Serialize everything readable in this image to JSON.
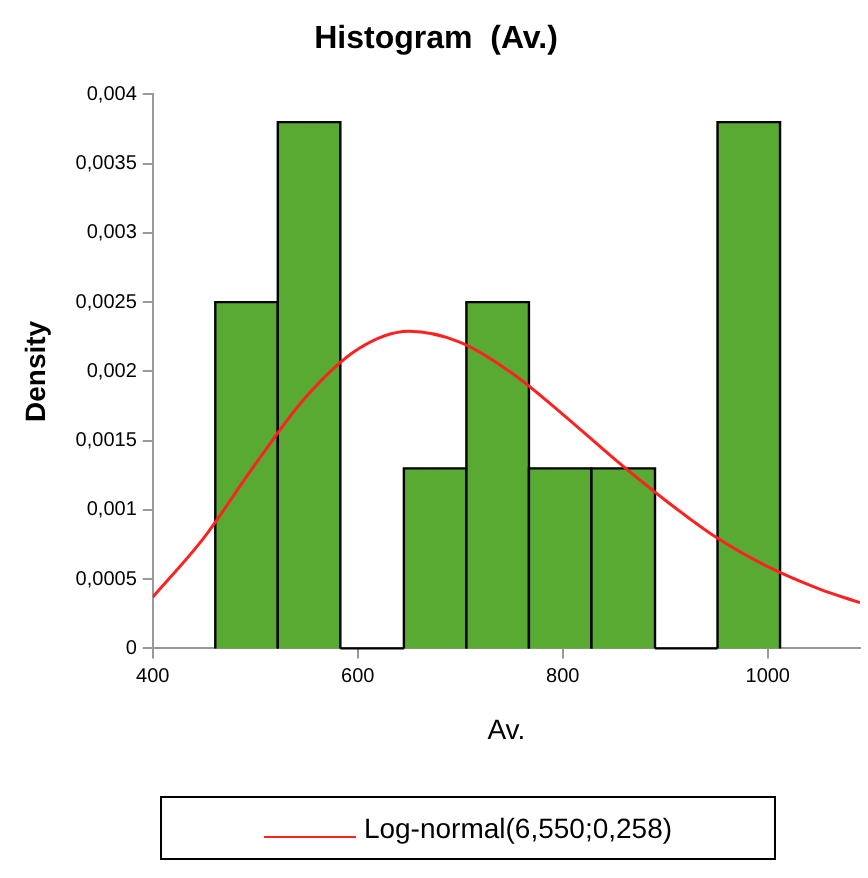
{
  "chart_data": {
    "type": "histogram",
    "title": "Histogram  (Av.)",
    "xlabel": "Av.",
    "ylabel": "Density",
    "bins": [
      461,
      522,
      583,
      645,
      706,
      767,
      828,
      890,
      951,
      1012
    ],
    "values": [
      0.0025,
      0.0038,
      0,
      0.0013,
      0.0025,
      0.0013,
      0.0013,
      0,
      0.0038
    ],
    "color": "#59aa32",
    "series": [
      {
        "type": "line",
        "name": "Log-normal(6,550;0,258)",
        "color": "#ff2020",
        "x": [
          400,
          450,
          500,
          550,
          600,
          650,
          700,
          750,
          800,
          850,
          900,
          950,
          1000,
          1050,
          1090
        ],
        "values": [
          0.00037,
          0.0008,
          0.00133,
          0.00182,
          0.00216,
          0.00229,
          0.00221,
          0.00199,
          0.00169,
          0.00137,
          0.00107,
          0.0008,
          0.00059,
          0.00043,
          0.00033
        ]
      }
    ],
    "xlim": [
      400,
      1090
    ],
    "xticks": [
      400,
      600,
      800,
      1000
    ],
    "ylim": [
      0,
      0.004
    ],
    "yticks": [
      {
        "value": 0,
        "label": "0"
      },
      {
        "value": 0.0005,
        "label": "0,0005"
      },
      {
        "value": 0.001,
        "label": "0,001"
      },
      {
        "value": 0.0015,
        "label": "0,0015"
      },
      {
        "value": 0.002,
        "label": "0,002"
      },
      {
        "value": 0.0025,
        "label": "0,0025"
      },
      {
        "value": 0.003,
        "label": "0,003"
      },
      {
        "value": 0.0035,
        "label": "0,0035"
      },
      {
        "value": 0.004,
        "label": "0,004"
      }
    ],
    "grid": false,
    "legend": "bottom",
    "marker": "none",
    "line_style": "solid"
  }
}
